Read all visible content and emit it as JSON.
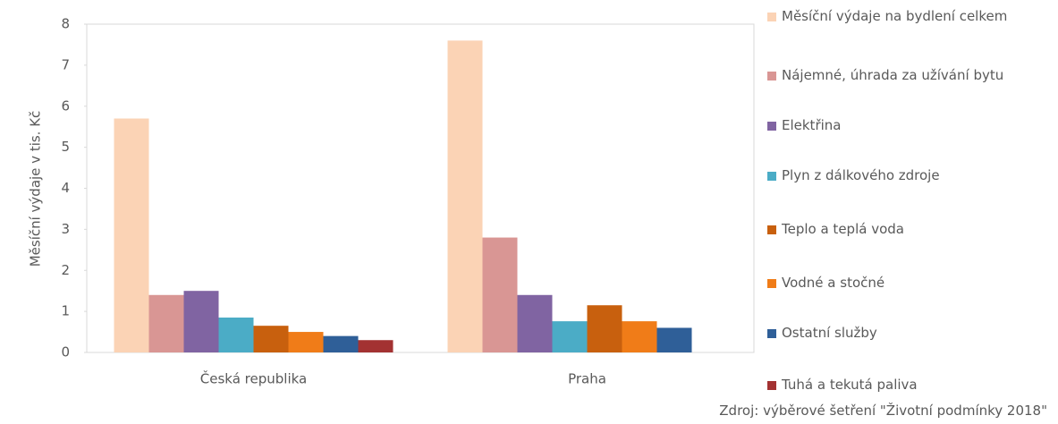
{
  "chart_data": {
    "type": "bar",
    "ylabel": "Měsíční výdaje v tis. Kč",
    "categories": [
      "Česká republika",
      "Praha"
    ],
    "series": [
      {
        "name": "Měsíční výdaje na bydlení celkem",
        "color": "#fbd3b5",
        "values": [
          5.7,
          7.6
        ]
      },
      {
        "name": "Nájemné, úhrada za užívání bytu",
        "color": "#d99694",
        "values": [
          1.4,
          2.8
        ]
      },
      {
        "name": "Elektřina",
        "color": "#8064a2",
        "values": [
          1.5,
          1.4
        ]
      },
      {
        "name": "Plyn z dálkového zdroje",
        "color": "#4bacc6",
        "values": [
          0.85,
          0.76
        ]
      },
      {
        "name": "Teplo a teplá voda",
        "color": "#c8600e",
        "values": [
          0.65,
          1.15
        ]
      },
      {
        "name": "Vodné a stočné",
        "color": "#f07c18",
        "values": [
          0.5,
          0.76
        ]
      },
      {
        "name": "Ostatní služby",
        "color": "#2f5f98",
        "values": [
          0.4,
          0.6
        ]
      },
      {
        "name": "Tuhá a tekutá paliva",
        "color": "#a33232",
        "values": [
          0.3,
          null
        ]
      }
    ],
    "ylim": [
      0,
      8
    ],
    "yticks": [
      0,
      1,
      2,
      3,
      4,
      5,
      6,
      7,
      8
    ],
    "source": "Zdroj: výběrové šetření \"Životní podmínky 2018\""
  }
}
